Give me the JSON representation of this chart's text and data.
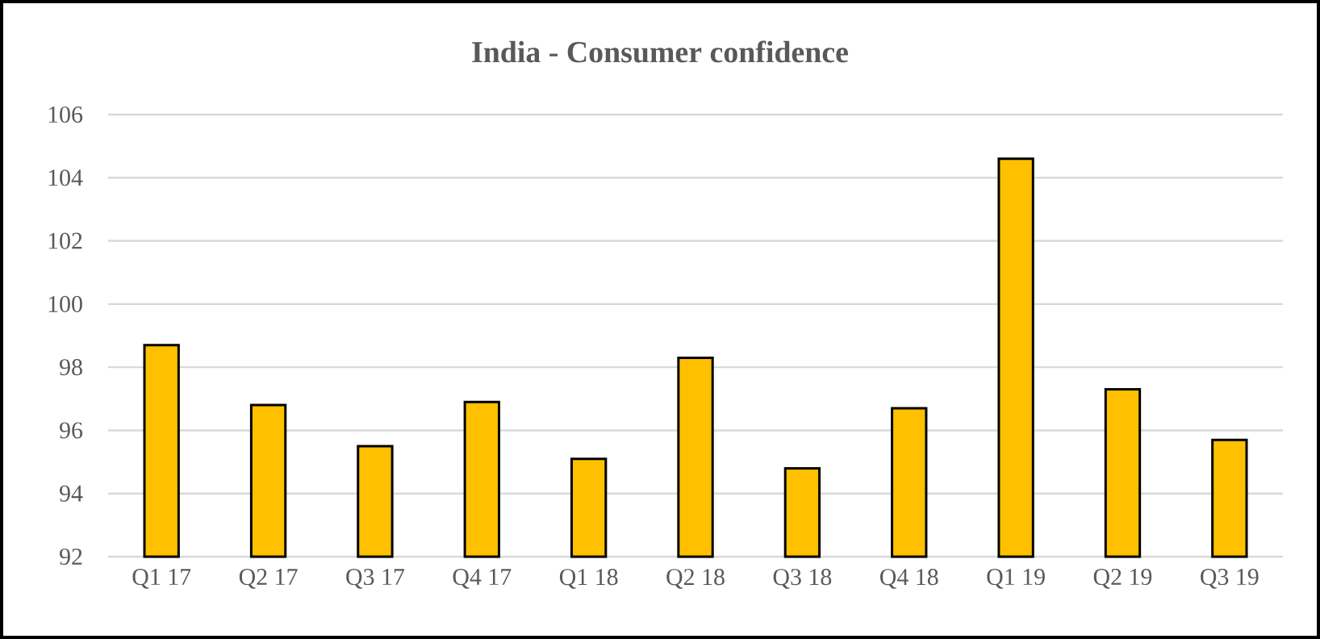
{
  "chart_data": {
    "type": "bar",
    "title": "India - Consumer confidence",
    "categories": [
      "Q1 17",
      "Q2 17",
      "Q3 17",
      "Q4 17",
      "Q1 18",
      "Q2 18",
      "Q3 18",
      "Q4 18",
      "Q1 19",
      "Q2 19",
      "Q3 19"
    ],
    "values": [
      98.7,
      96.8,
      95.5,
      96.9,
      95.1,
      98.3,
      94.8,
      96.7,
      104.6,
      97.3,
      95.7
    ],
    "color": "#ffc000",
    "ylim": [
      92,
      106
    ],
    "yticks": [
      92,
      94,
      96,
      98,
      100,
      102,
      104,
      106
    ],
    "grid": "y"
  }
}
